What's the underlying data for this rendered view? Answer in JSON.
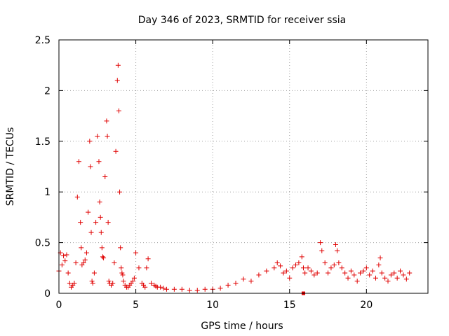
{
  "chart_data": {
    "type": "scatter",
    "title": "Day 346 of 2023, SRMTID for receiver ssia",
    "xlabel": "GPS time / hours",
    "ylabel": "SRMTID / TECUs",
    "xlim": [
      0,
      24
    ],
    "ylim": [
      0,
      2.5
    ],
    "xticks": [
      0,
      5,
      10,
      15,
      20
    ],
    "xtick_labels": [
      "0",
      "5",
      "10",
      "15",
      "20"
    ],
    "yticks": [
      0,
      0.5,
      1,
      1.5,
      2,
      2.5
    ],
    "ytick_labels": [
      "0",
      "0.5",
      "1",
      "1.5",
      "2",
      "2.5"
    ],
    "grid": true,
    "marker": "+",
    "color": "#e00000",
    "series": [
      {
        "name": "SRMTID",
        "x": [
          0.0,
          0.1,
          0.2,
          0.3,
          0.4,
          0.5,
          0.6,
          0.7,
          0.8,
          0.9,
          1.0,
          1.1,
          1.2,
          1.3,
          1.4,
          1.45,
          1.5,
          1.6,
          1.7,
          1.8,
          1.9,
          2.0,
          2.05,
          2.1,
          2.15,
          2.2,
          2.3,
          2.4,
          2.5,
          2.6,
          2.65,
          2.7,
          2.75,
          2.8,
          2.85,
          2.9,
          3.0,
          3.1,
          3.15,
          3.2,
          3.25,
          3.3,
          3.4,
          3.5,
          3.6,
          3.7,
          3.8,
          3.85,
          3.9,
          3.95,
          4.0,
          4.05,
          4.1,
          4.15,
          4.2,
          4.3,
          4.4,
          4.5,
          4.6,
          4.7,
          4.8,
          4.9,
          5.0,
          5.2,
          5.4,
          5.5,
          5.6,
          5.7,
          5.8,
          6.0,
          6.2,
          6.3,
          6.4,
          6.6,
          6.8,
          7.0,
          7.5,
          8.0,
          8.5,
          9.0,
          9.5,
          10.0,
          10.5,
          11.0,
          11.5,
          12.0,
          12.5,
          13.0,
          13.5,
          14.0,
          14.2,
          14.4,
          14.6,
          14.8,
          15.0,
          15.2,
          15.4,
          15.6,
          15.8,
          15.9,
          16.0,
          16.2,
          16.4,
          16.6,
          16.8,
          17.0,
          17.1,
          17.3,
          17.5,
          17.7,
          17.9,
          18.0,
          18.1,
          18.2,
          18.4,
          18.6,
          18.8,
          19.0,
          19.2,
          19.4,
          19.6,
          19.8,
          20.0,
          20.2,
          20.4,
          20.6,
          20.8,
          20.9,
          21.0,
          21.2,
          21.4,
          21.6,
          21.8,
          22.0,
          22.2,
          22.4,
          22.6,
          22.8
        ],
        "y": [
          0.22,
          0.4,
          0.28,
          0.37,
          0.32,
          0.38,
          0.2,
          0.1,
          0.06,
          0.08,
          0.1,
          0.3,
          0.95,
          1.3,
          0.7,
          0.45,
          0.28,
          0.3,
          0.33,
          0.4,
          0.8,
          1.5,
          1.25,
          0.6,
          0.12,
          0.1,
          0.2,
          0.7,
          1.55,
          1.3,
          0.9,
          0.75,
          0.6,
          0.45,
          0.36,
          0.35,
          1.15,
          1.7,
          1.55,
          0.7,
          0.12,
          0.1,
          0.08,
          0.1,
          0.3,
          1.4,
          2.1,
          2.25,
          1.8,
          1.0,
          0.45,
          0.25,
          0.2,
          0.18,
          0.12,
          0.08,
          0.06,
          0.06,
          0.08,
          0.1,
          0.12,
          0.15,
          0.4,
          0.25,
          0.1,
          0.08,
          0.06,
          0.25,
          0.34,
          0.1,
          0.08,
          0.07,
          0.06,
          0.06,
          0.05,
          0.04,
          0.04,
          0.04,
          0.03,
          0.03,
          0.04,
          0.04,
          0.05,
          0.08,
          0.1,
          0.14,
          0.12,
          0.18,
          0.22,
          0.25,
          0.3,
          0.27,
          0.2,
          0.22,
          0.15,
          0.25,
          0.28,
          0.3,
          0.36,
          0.25,
          0.2,
          0.25,
          0.22,
          0.18,
          0.2,
          0.5,
          0.42,
          0.3,
          0.2,
          0.25,
          0.28,
          0.48,
          0.42,
          0.3,
          0.25,
          0.2,
          0.15,
          0.22,
          0.18,
          0.12,
          0.2,
          0.22,
          0.25,
          0.18,
          0.22,
          0.15,
          0.28,
          0.35,
          0.2,
          0.15,
          0.12,
          0.18,
          0.2,
          0.15,
          0.22,
          0.18,
          0.14,
          0.2
        ],
        "outliers": {
          "x": [
            15.9
          ],
          "y": [
            0.0
          ]
        }
      }
    ]
  }
}
